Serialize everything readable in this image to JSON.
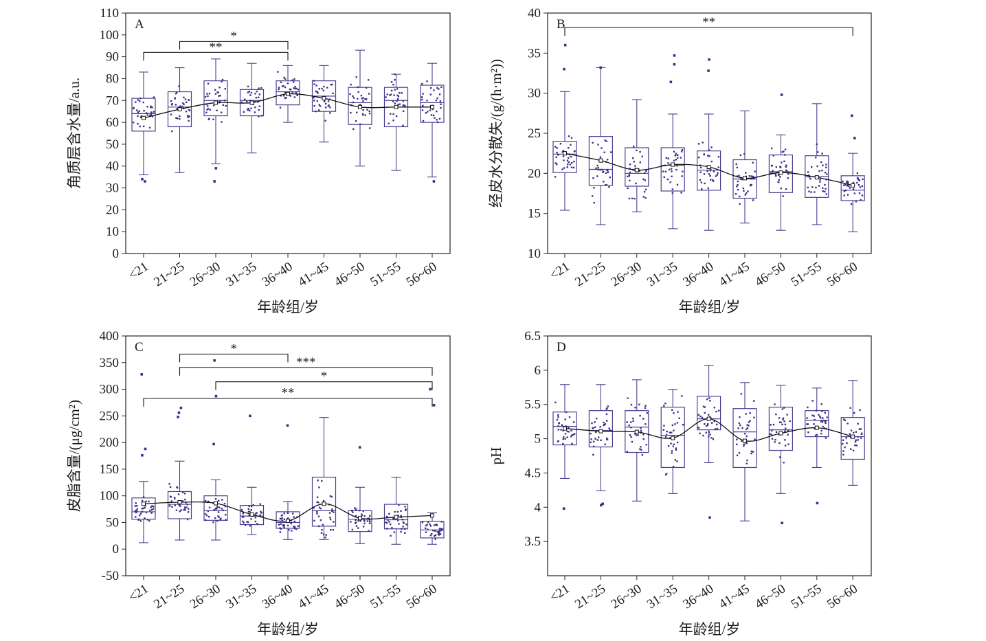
{
  "xlabel": "年龄组/岁",
  "chart_data": [
    {
      "type": "box",
      "panel": "A",
      "ylabel": "角质层含水量/a.u.",
      "ylim": [
        0,
        110
      ],
      "yticks": [
        0,
        10,
        20,
        30,
        40,
        50,
        60,
        70,
        80,
        90,
        100,
        110
      ],
      "categories": [
        "<21",
        "21~25",
        "26~30",
        "31~35",
        "36~40",
        "41~45",
        "46~50",
        "51~55",
        "56~60"
      ],
      "boxes": [
        {
          "min": 36,
          "q1": 56,
          "median": 64,
          "q3": 71,
          "max": 83,
          "mean": 62
        },
        {
          "min": 37,
          "q1": 58,
          "median": 67,
          "q3": 74,
          "max": 85,
          "mean": 66
        },
        {
          "min": 41,
          "q1": 63,
          "median": 70,
          "q3": 79,
          "max": 89,
          "mean": 69
        },
        {
          "min": 46,
          "q1": 63,
          "median": 70,
          "q3": 75,
          "max": 87,
          "mean": 69
        },
        {
          "min": 60,
          "q1": 68,
          "median": 74,
          "q3": 79,
          "max": 86,
          "mean": 73
        },
        {
          "min": 51,
          "q1": 65,
          "median": 72,
          "q3": 79,
          "max": 86,
          "mean": 71
        },
        {
          "min": 40,
          "q1": 59,
          "median": 69,
          "q3": 76,
          "max": 93,
          "mean": 67
        },
        {
          "min": 38,
          "q1": 58,
          "median": 70,
          "q3": 76,
          "max": 82,
          "mean": 67
        },
        {
          "min": 35,
          "q1": 60,
          "median": 69,
          "q3": 77,
          "max": 87,
          "mean": 67
        }
      ],
      "outliers": [
        [
          0,
          33
        ],
        [
          0,
          34
        ],
        [
          2,
          33
        ],
        [
          2,
          39
        ],
        [
          8,
          33
        ]
      ],
      "significance": [
        {
          "from": 0,
          "to": 4,
          "label": "**",
          "y": 92
        },
        {
          "from": 1,
          "to": 4,
          "label": "*",
          "y": 97
        }
      ]
    },
    {
      "type": "box",
      "panel": "B",
      "ylabel": "经皮水分散失/(g/(h·m²))",
      "ylim": [
        10,
        40
      ],
      "yticks": [
        10,
        15,
        20,
        25,
        30,
        35,
        40
      ],
      "categories": [
        "<21",
        "21~25",
        "26~30",
        "31~35",
        "36~40",
        "41~45",
        "46~50",
        "51~55",
        "56~60"
      ],
      "boxes": [
        {
          "min": 15.4,
          "q1": 20.1,
          "median": 22.4,
          "q3": 24.0,
          "max": 30.2,
          "mean": 22.5
        },
        {
          "min": 13.6,
          "q1": 18.5,
          "median": 20.5,
          "q3": 24.6,
          "max": 33.2,
          "mean": 21.6
        },
        {
          "min": 15.2,
          "q1": 18.4,
          "median": 20.0,
          "q3": 23.2,
          "max": 29.2,
          "mean": 20.4
        },
        {
          "min": 13.1,
          "q1": 17.8,
          "median": 21.0,
          "q3": 23.2,
          "max": 27.4,
          "mean": 21.1
        },
        {
          "min": 12.9,
          "q1": 17.9,
          "median": 20.4,
          "q3": 22.8,
          "max": 27.4,
          "mean": 20.8
        },
        {
          "min": 13.8,
          "q1": 16.9,
          "median": 19.3,
          "q3": 21.7,
          "max": 27.8,
          "mean": 19.4
        },
        {
          "min": 12.9,
          "q1": 17.6,
          "median": 20.2,
          "q3": 22.3,
          "max": 24.8,
          "mean": 20.1
        },
        {
          "min": 13.6,
          "q1": 17.0,
          "median": 19.6,
          "q3": 22.2,
          "max": 28.7,
          "mean": 19.5
        },
        {
          "min": 12.7,
          "q1": 16.6,
          "median": 17.9,
          "q3": 19.7,
          "max": 22.5,
          "mean": 18.5
        }
      ],
      "outliers": [
        [
          0,
          33.0
        ],
        [
          0,
          36.0
        ],
        [
          1,
          33.2
        ],
        [
          3,
          31.4
        ],
        [
          3,
          33.6
        ],
        [
          3,
          34.7
        ],
        [
          4,
          32.8
        ],
        [
          4,
          34.2
        ],
        [
          6,
          29.8
        ],
        [
          8,
          24.4
        ],
        [
          8,
          27.2
        ]
      ],
      "significance": [
        {
          "from": 0,
          "to": 8,
          "label": "**",
          "y": 38.2
        }
      ]
    },
    {
      "type": "box",
      "panel": "C",
      "ylabel": "皮脂含量/(μg/cm²)",
      "ylim": [
        -50,
        400
      ],
      "yticks": [
        -50,
        0,
        50,
        100,
        150,
        200,
        250,
        300,
        350,
        400
      ],
      "categories": [
        "<21",
        "21~25",
        "26~30",
        "31~35",
        "36~40",
        "41~45",
        "46~50",
        "51~55",
        "56~60"
      ],
      "boxes": [
        {
          "min": 12,
          "q1": 56,
          "median": 70,
          "q3": 96,
          "max": 127,
          "mean": 85
        },
        {
          "min": 17,
          "q1": 57,
          "median": 84,
          "q3": 108,
          "max": 165,
          "mean": 88
        },
        {
          "min": 17,
          "q1": 54,
          "median": 72,
          "q3": 100,
          "max": 130,
          "mean": 86
        },
        {
          "min": 27,
          "q1": 46,
          "median": 62,
          "q3": 82,
          "max": 116,
          "mean": 65
        },
        {
          "min": 18,
          "q1": 39,
          "median": 50,
          "q3": 70,
          "max": 89,
          "mean": 53
        },
        {
          "min": 18,
          "q1": 43,
          "median": 72,
          "q3": 135,
          "max": 247,
          "mean": 85
        },
        {
          "min": 10,
          "q1": 33,
          "median": 56,
          "q3": 72,
          "max": 116,
          "mean": 58
        },
        {
          "min": 9,
          "q1": 38,
          "median": 55,
          "q3": 84,
          "max": 135,
          "mean": 60
        },
        {
          "min": 9,
          "q1": 21,
          "median": 36,
          "q3": 52,
          "max": 68,
          "mean": 63
        }
      ],
      "outliers": [
        [
          0,
          176
        ],
        [
          0,
          188
        ],
        [
          0,
          328
        ],
        [
          1,
          248
        ],
        [
          1,
          256
        ],
        [
          1,
          265
        ],
        [
          2,
          197
        ],
        [
          2,
          287
        ],
        [
          2,
          354
        ],
        [
          3,
          250
        ],
        [
          4,
          232
        ],
        [
          6,
          191
        ],
        [
          8,
          270
        ],
        [
          8,
          300
        ]
      ],
      "significance": [
        {
          "from": 0,
          "to": 8,
          "label": "**",
          "y": 283
        },
        {
          "from": 2,
          "to": 8,
          "label": "*",
          "y": 314
        },
        {
          "from": 1,
          "to": 8,
          "label": "***",
          "y": 341
        },
        {
          "from": 1,
          "to": 4,
          "label": "*",
          "y": 366
        }
      ]
    },
    {
      "type": "box",
      "panel": "D",
      "ylabel": "pH",
      "ylim": [
        3.0,
        6.5
      ],
      "yticks": [
        3.5,
        4.0,
        4.5,
        5.0,
        5.5,
        6.0,
        6.5
      ],
      "categories": [
        "<21",
        "21~25",
        "26~30",
        "31~35",
        "36~40",
        "41~45",
        "46~50",
        "51~55",
        "56~60"
      ],
      "boxes": [
        {
          "min": 4.42,
          "q1": 4.91,
          "median": 5.18,
          "q3": 5.39,
          "max": 5.79,
          "mean": 5.15
        },
        {
          "min": 4.24,
          "q1": 4.88,
          "median": 5.12,
          "q3": 5.41,
          "max": 5.79,
          "mean": 5.11
        },
        {
          "min": 4.09,
          "q1": 4.8,
          "median": 5.17,
          "q3": 5.41,
          "max": 5.86,
          "mean": 5.1
        },
        {
          "min": 4.2,
          "q1": 4.58,
          "median": 5.05,
          "q3": 5.46,
          "max": 5.72,
          "mean": 5.01
        },
        {
          "min": 4.65,
          "q1": 5.13,
          "median": 5.29,
          "q3": 5.62,
          "max": 6.07,
          "mean": 5.29
        },
        {
          "min": 3.8,
          "q1": 4.58,
          "median": 5.1,
          "q3": 5.44,
          "max": 5.82,
          "mean": 4.97
        },
        {
          "min": 4.2,
          "q1": 4.83,
          "median": 5.13,
          "q3": 5.46,
          "max": 5.78,
          "mean": 5.08
        },
        {
          "min": 4.58,
          "q1": 5.03,
          "median": 5.27,
          "q3": 5.41,
          "max": 5.74,
          "mean": 5.16
        },
        {
          "min": 4.32,
          "q1": 4.7,
          "median": 5.03,
          "q3": 5.31,
          "max": 5.85,
          "mean": 5.03
        }
      ],
      "outliers": [
        [
          0,
          3.98
        ],
        [
          1,
          4.03
        ],
        [
          1,
          4.05
        ],
        [
          4,
          3.85
        ],
        [
          6,
          3.77
        ],
        [
          7,
          4.06
        ]
      ],
      "significance": []
    }
  ]
}
